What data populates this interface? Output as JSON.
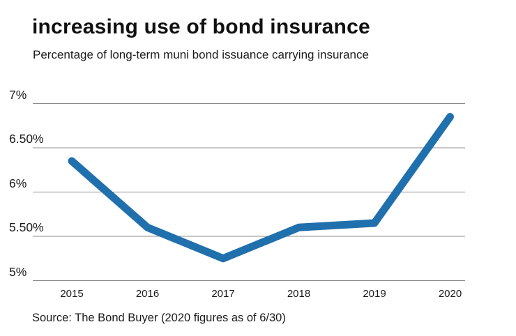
{
  "page": {
    "background": "#ffffff",
    "text_color": "#1a1a1a"
  },
  "header": {
    "title": "increasing use of bond insurance",
    "subtitle": "Percentage of long-term muni bond issuance carrying insurance"
  },
  "chart_data": {
    "type": "line",
    "title": "increasing use of bond insurance",
    "subtitle": "Percentage of long-term muni bond issuance carrying insurance",
    "x": [
      "2015",
      "2016",
      "2017",
      "2018",
      "2019",
      "2020"
    ],
    "series": [
      {
        "name": "insured-share-of-issuance",
        "values": [
          6.35,
          5.6,
          5.25,
          5.6,
          5.65,
          6.85
        ]
      }
    ],
    "ylim": [
      5,
      7
    ],
    "yticks": [
      {
        "value": 7,
        "label": "7%"
      },
      {
        "value": 6.5,
        "label": "6.50%"
      },
      {
        "value": 6,
        "label": "6%"
      },
      {
        "value": 5.5,
        "label": "5.50%"
      },
      {
        "value": 5,
        "label": "5%"
      }
    ],
    "grid": true,
    "legend_position": "none",
    "line_color": "#2070ad",
    "grid_color": "#8c8c8c"
  },
  "footer": {
    "source": "Source: The Bond Buyer (2020 figures as of 6/30)"
  }
}
